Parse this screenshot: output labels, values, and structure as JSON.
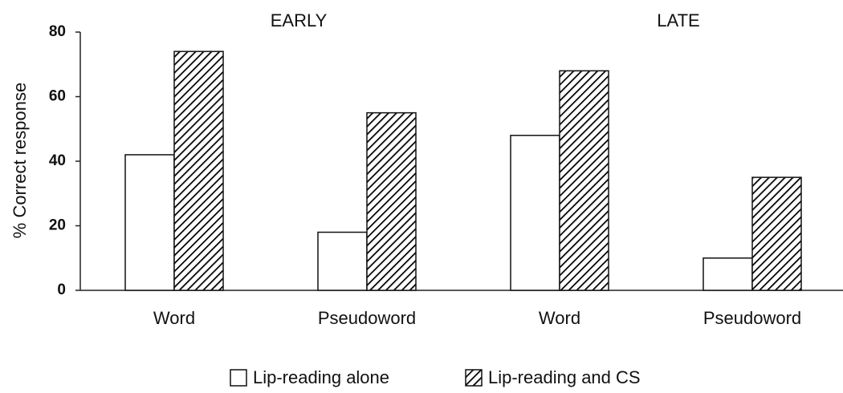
{
  "chart_data": {
    "type": "bar",
    "ylabel": "% Correct response",
    "annotations": [
      "EARLY",
      "LATE"
    ],
    "categories": [
      "Word",
      "Pseudoword",
      "Word",
      "Pseudoword"
    ],
    "series": [
      {
        "name": "Lip-reading alone",
        "color": "#ffffff",
        "values": [
          42,
          18,
          48,
          10
        ]
      },
      {
        "name": "Lip-reading and CS",
        "color": "#000000",
        "hatch": true,
        "values": [
          74,
          55,
          68,
          35
        ]
      }
    ],
    "ylim": [
      0,
      80
    ],
    "yticks": [
      0,
      20,
      40,
      60,
      80
    ]
  }
}
